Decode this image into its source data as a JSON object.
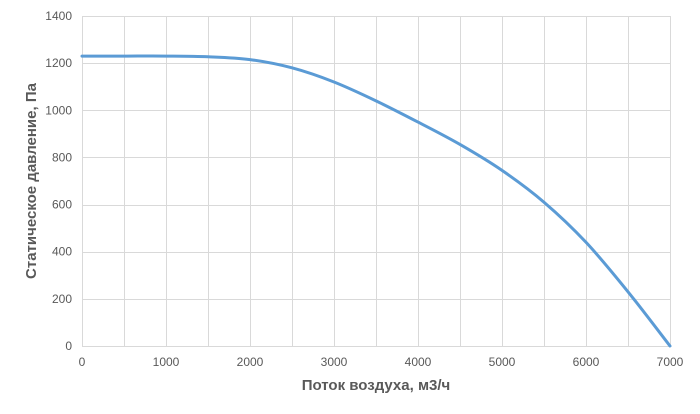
{
  "chart_data": {
    "type": "line",
    "title": "",
    "xlabel": "Поток воздуха, м3/ч",
    "ylabel": "Статическое давление, Па",
    "xlim": [
      0,
      7000
    ],
    "ylim": [
      0,
      1400
    ],
    "x_ticks": [
      "0",
      "1000",
      "2000",
      "3000",
      "4000",
      "5000",
      "6000",
      "7000"
    ],
    "y_ticks": [
      "0",
      "200",
      "400",
      "600",
      "800",
      "1000",
      "1200",
      "1400"
    ],
    "grid": true,
    "legend": "none",
    "series": [
      {
        "color": "#5b9bd5",
        "x": [
          0,
          500,
          1000,
          1500,
          2000,
          2500,
          3000,
          3500,
          4000,
          4500,
          5000,
          5500,
          6000,
          6500,
          7000
        ],
        "y": [
          1230,
          1230,
          1230,
          1227,
          1215,
          1180,
          1120,
          1040,
          950,
          855,
          745,
          610,
          440,
          230,
          0
        ]
      }
    ]
  }
}
